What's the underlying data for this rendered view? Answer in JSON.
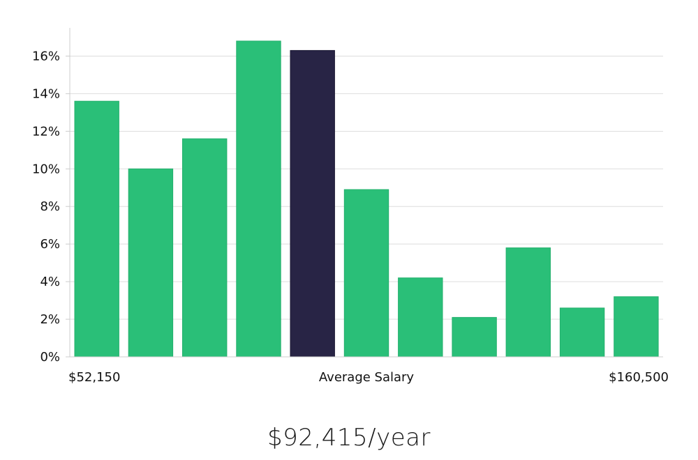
{
  "chart_data": {
    "type": "bar",
    "title": "",
    "xlabel": "",
    "ylabel": "",
    "categories": [
      "1",
      "2",
      "3",
      "4",
      "5",
      "6",
      "7",
      "8",
      "9",
      "10",
      "11"
    ],
    "values": [
      13.6,
      10.0,
      11.6,
      16.8,
      16.3,
      8.9,
      4.2,
      2.1,
      5.8,
      2.6,
      3.2
    ],
    "highlight_index": 4,
    "ylim": [
      0,
      17.5
    ],
    "y_ticks": [
      0,
      2,
      4,
      6,
      8,
      10,
      12,
      14,
      16
    ],
    "y_tick_suffix": "%",
    "grid": true,
    "x_axis_labels": {
      "left": "$52,150",
      "center": "Average Salary",
      "right": "$160,500"
    },
    "colors": {
      "bar": "#2abf78",
      "bar_highlight": "#282445",
      "grid": "#dddddd",
      "axis": "#cccccc"
    }
  },
  "summary": {
    "average_salary_text": "$92,415/year"
  }
}
